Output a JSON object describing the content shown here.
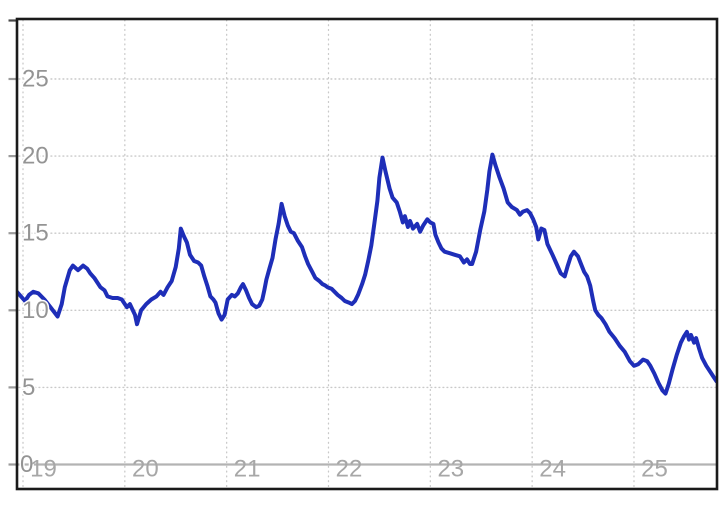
{
  "chart_data": {
    "type": "line",
    "title": "",
    "xlabel": "",
    "ylabel": "",
    "x_axis": {
      "tick_labels": [
        "19",
        "20",
        "21",
        "22",
        "23",
        "24",
        "25"
      ],
      "tick_values": [
        19,
        20,
        21,
        22,
        23,
        24,
        25
      ],
      "range": [
        18.94,
        25.82
      ]
    },
    "y_axis": {
      "tick_labels": [
        "0",
        "5",
        "10",
        "15",
        "20",
        "25"
      ],
      "tick_values": [
        0,
        5,
        10,
        15,
        20,
        25
      ],
      "range": [
        -1.6,
        28.9
      ]
    },
    "grid": {
      "horizontal_dotted_at": [
        5,
        10,
        15,
        20,
        25
      ],
      "vertical_dotted_at_years": [
        19,
        20,
        21,
        22,
        23,
        24,
        25
      ],
      "solid_baseline_at": 0
    },
    "legend": "none",
    "series": [
      {
        "name": "series-1",
        "color": "#1e2eb8",
        "points": [
          [
            18.94,
            11.2
          ],
          [
            18.98,
            10.9
          ],
          [
            19.02,
            10.6
          ],
          [
            19.06,
            11.0
          ],
          [
            19.1,
            11.2
          ],
          [
            19.15,
            11.1
          ],
          [
            19.21,
            10.7
          ],
          [
            19.27,
            10.2
          ],
          [
            19.34,
            9.6
          ],
          [
            19.38,
            10.4
          ],
          [
            19.41,
            11.5
          ],
          [
            19.46,
            12.6
          ],
          [
            19.49,
            12.9
          ],
          [
            19.54,
            12.6
          ],
          [
            19.59,
            12.9
          ],
          [
            19.63,
            12.7
          ],
          [
            19.66,
            12.4
          ],
          [
            19.7,
            12.1
          ],
          [
            19.76,
            11.5
          ],
          [
            19.8,
            11.3
          ],
          [
            19.83,
            10.9
          ],
          [
            19.88,
            10.8
          ],
          [
            19.93,
            10.8
          ],
          [
            19.97,
            10.7
          ],
          [
            20.02,
            10.2
          ],
          [
            20.05,
            10.4
          ],
          [
            20.1,
            9.7
          ],
          [
            20.12,
            9.1
          ],
          [
            20.16,
            10.0
          ],
          [
            20.21,
            10.4
          ],
          [
            20.26,
            10.7
          ],
          [
            20.31,
            10.9
          ],
          [
            20.35,
            11.2
          ],
          [
            20.38,
            11.0
          ],
          [
            20.42,
            11.5
          ],
          [
            20.46,
            11.9
          ],
          [
            20.5,
            12.8
          ],
          [
            20.53,
            14.0
          ],
          [
            20.55,
            15.3
          ],
          [
            20.58,
            14.8
          ],
          [
            20.61,
            14.4
          ],
          [
            20.64,
            13.6
          ],
          [
            20.68,
            13.2
          ],
          [
            20.72,
            13.1
          ],
          [
            20.75,
            12.9
          ],
          [
            20.78,
            12.2
          ],
          [
            20.81,
            11.6
          ],
          [
            20.84,
            10.9
          ],
          [
            20.87,
            10.7
          ],
          [
            20.89,
            10.5
          ],
          [
            20.92,
            9.8
          ],
          [
            20.95,
            9.4
          ],
          [
            20.98,
            9.7
          ],
          [
            21.01,
            10.7
          ],
          [
            21.05,
            11.0
          ],
          [
            21.08,
            10.9
          ],
          [
            21.11,
            11.1
          ],
          [
            21.14,
            11.5
          ],
          [
            21.16,
            11.7
          ],
          [
            21.19,
            11.3
          ],
          [
            21.22,
            10.8
          ],
          [
            21.25,
            10.4
          ],
          [
            21.29,
            10.2
          ],
          [
            21.32,
            10.3
          ],
          [
            21.35,
            10.7
          ],
          [
            21.37,
            11.3
          ],
          [
            21.39,
            12.0
          ],
          [
            21.42,
            12.7
          ],
          [
            21.45,
            13.4
          ],
          [
            21.48,
            14.6
          ],
          [
            21.51,
            15.6
          ],
          [
            21.54,
            16.9
          ],
          [
            21.57,
            16.1
          ],
          [
            21.6,
            15.5
          ],
          [
            21.63,
            15.1
          ],
          [
            21.66,
            15.0
          ],
          [
            21.7,
            14.5
          ],
          [
            21.74,
            14.1
          ],
          [
            21.77,
            13.5
          ],
          [
            21.8,
            13.0
          ],
          [
            21.84,
            12.5
          ],
          [
            21.87,
            12.1
          ],
          [
            21.91,
            11.9
          ],
          [
            21.94,
            11.7
          ],
          [
            21.97,
            11.6
          ],
          [
            21.99,
            11.5
          ],
          [
            22.03,
            11.4
          ],
          [
            22.06,
            11.2
          ],
          [
            22.09,
            11.0
          ],
          [
            22.13,
            10.8
          ],
          [
            22.16,
            10.6
          ],
          [
            22.2,
            10.5
          ],
          [
            22.23,
            10.4
          ],
          [
            22.26,
            10.6
          ],
          [
            22.29,
            11.0
          ],
          [
            22.33,
            11.7
          ],
          [
            22.36,
            12.3
          ],
          [
            22.39,
            13.2
          ],
          [
            22.42,
            14.2
          ],
          [
            22.45,
            15.6
          ],
          [
            22.48,
            17.1
          ],
          [
            22.5,
            18.6
          ],
          [
            22.53,
            19.9
          ],
          [
            22.56,
            19.0
          ],
          [
            22.6,
            17.9
          ],
          [
            22.63,
            17.3
          ],
          [
            22.67,
            17.0
          ],
          [
            22.7,
            16.4
          ],
          [
            22.73,
            15.7
          ],
          [
            22.75,
            16.1
          ],
          [
            22.78,
            15.4
          ],
          [
            22.8,
            15.8
          ],
          [
            22.83,
            15.3
          ],
          [
            22.87,
            15.6
          ],
          [
            22.9,
            15.1
          ],
          [
            22.93,
            15.5
          ],
          [
            22.97,
            15.9
          ],
          [
            23.0,
            15.7
          ],
          [
            23.03,
            15.6
          ],
          [
            23.05,
            14.9
          ],
          [
            23.08,
            14.4
          ],
          [
            23.11,
            14.0
          ],
          [
            23.14,
            13.8
          ],
          [
            23.19,
            13.7
          ],
          [
            23.24,
            13.6
          ],
          [
            23.29,
            13.5
          ],
          [
            23.33,
            13.1
          ],
          [
            23.36,
            13.3
          ],
          [
            23.39,
            13.0
          ],
          [
            23.41,
            13.0
          ],
          [
            23.45,
            13.8
          ],
          [
            23.49,
            15.2
          ],
          [
            23.53,
            16.4
          ],
          [
            23.56,
            17.8
          ],
          [
            23.58,
            19.0
          ],
          [
            23.61,
            20.1
          ],
          [
            23.64,
            19.4
          ],
          [
            23.68,
            18.6
          ],
          [
            23.72,
            17.9
          ],
          [
            23.76,
            17.0
          ],
          [
            23.8,
            16.7
          ],
          [
            23.85,
            16.5
          ],
          [
            23.88,
            16.2
          ],
          [
            23.91,
            16.4
          ],
          [
            23.95,
            16.5
          ],
          [
            23.98,
            16.3
          ],
          [
            24.01,
            15.9
          ],
          [
            24.04,
            15.4
          ],
          [
            24.06,
            14.6
          ],
          [
            24.09,
            15.3
          ],
          [
            24.12,
            15.2
          ],
          [
            24.15,
            14.3
          ],
          [
            24.2,
            13.6
          ],
          [
            24.24,
            13.0
          ],
          [
            24.28,
            12.4
          ],
          [
            24.32,
            12.2
          ],
          [
            24.35,
            12.9
          ],
          [
            24.38,
            13.5
          ],
          [
            24.41,
            13.8
          ],
          [
            24.45,
            13.5
          ],
          [
            24.48,
            13.0
          ],
          [
            24.51,
            12.5
          ],
          [
            24.54,
            12.2
          ],
          [
            24.57,
            11.6
          ],
          [
            24.6,
            10.6
          ],
          [
            24.62,
            10.0
          ],
          [
            24.65,
            9.7
          ],
          [
            24.68,
            9.5
          ],
          [
            24.72,
            9.1
          ],
          [
            24.76,
            8.6
          ],
          [
            24.81,
            8.2
          ],
          [
            24.86,
            7.7
          ],
          [
            24.91,
            7.3
          ],
          [
            24.96,
            6.7
          ],
          [
            25.0,
            6.4
          ],
          [
            25.04,
            6.5
          ],
          [
            25.09,
            6.8
          ],
          [
            25.13,
            6.7
          ],
          [
            25.16,
            6.4
          ],
          [
            25.2,
            5.9
          ],
          [
            25.24,
            5.3
          ],
          [
            25.28,
            4.8
          ],
          [
            25.31,
            4.6
          ],
          [
            25.34,
            5.2
          ],
          [
            25.38,
            6.2
          ],
          [
            25.42,
            7.1
          ],
          [
            25.46,
            7.9
          ],
          [
            25.49,
            8.3
          ],
          [
            25.52,
            8.6
          ],
          [
            25.54,
            8.1
          ],
          [
            25.56,
            8.4
          ],
          [
            25.59,
            7.9
          ],
          [
            25.61,
            8.2
          ],
          [
            25.64,
            7.5
          ],
          [
            25.67,
            6.9
          ],
          [
            25.71,
            6.4
          ],
          [
            25.75,
            6.0
          ],
          [
            25.78,
            5.7
          ],
          [
            25.81,
            5.4
          ]
        ]
      }
    ]
  },
  "colors": {
    "background": "#ffffff",
    "frame": "#1a1a1a",
    "grid_dotted": "#c9c9c9",
    "baseline": "#b3b3b3",
    "tick": "#9b9b9b",
    "y_label": "#949494",
    "x_label": "#a7a7a7",
    "line": "#1e2eb8"
  }
}
